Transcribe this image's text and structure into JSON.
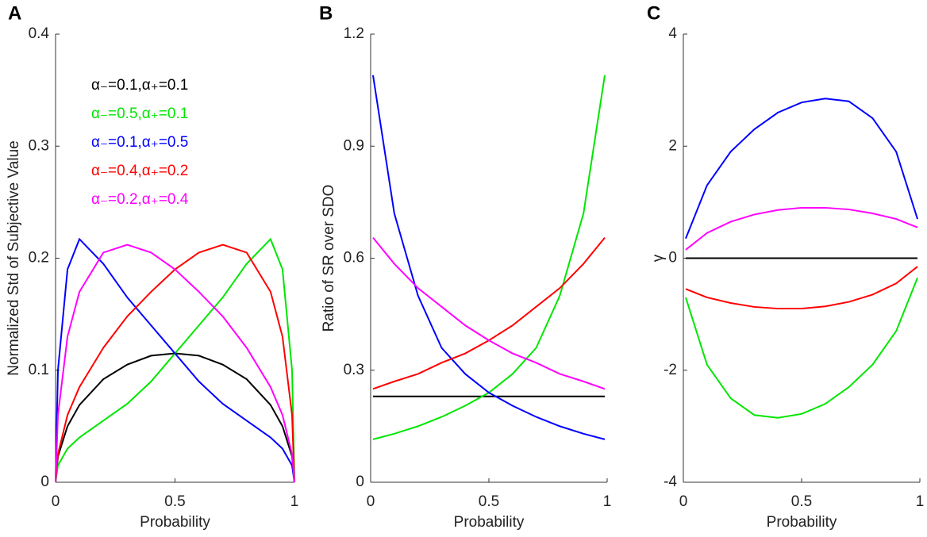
{
  "chart_data": [
    {
      "type": "line",
      "panel_label": "A",
      "xlabel": "Probability",
      "ylabel": "Normalized Std of Subjective Value",
      "x": [
        0,
        0.01,
        0.05,
        0.1,
        0.2,
        0.3,
        0.4,
        0.5,
        0.6,
        0.7,
        0.8,
        0.9,
        0.95,
        0.99,
        1
      ],
      "xlim": [
        0,
        1
      ],
      "xticks": [
        0,
        0.5,
        1
      ],
      "ylim": [
        0,
        0.4
      ],
      "yticks": [
        0,
        0.1,
        0.2,
        0.3,
        0.4
      ],
      "series": [
        {
          "name": "α₋=0.1,α₊=0.1",
          "color": "#000000",
          "values": [
            0,
            0.023,
            0.05,
            0.069,
            0.092,
            0.105,
            0.113,
            0.115,
            0.113,
            0.105,
            0.092,
            0.069,
            0.05,
            0.023,
            0
          ]
        },
        {
          "name": "α₋=0.5,α₊=0.1",
          "color": "#00e600",
          "values": [
            0,
            0.015,
            0.03,
            0.04,
            0.055,
            0.07,
            0.09,
            0.115,
            0.14,
            0.165,
            0.195,
            0.217,
            0.19,
            0.1,
            0
          ]
        },
        {
          "name": "α₋=0.1,α₊=0.5",
          "color": "#0000ff",
          "values": [
            0,
            0.1,
            0.19,
            0.217,
            0.195,
            0.165,
            0.14,
            0.115,
            0.09,
            0.07,
            0.055,
            0.04,
            0.03,
            0.015,
            0
          ]
        },
        {
          "name": "α₋=0.4,α₊=0.2",
          "color": "#ff0000",
          "values": [
            0,
            0.025,
            0.06,
            0.085,
            0.12,
            0.148,
            0.17,
            0.19,
            0.205,
            0.212,
            0.205,
            0.17,
            0.13,
            0.06,
            0
          ]
        },
        {
          "name": "α₋=0.2,α₊=0.4",
          "color": "#ff00ff",
          "values": [
            0,
            0.06,
            0.13,
            0.17,
            0.205,
            0.212,
            0.205,
            0.19,
            0.17,
            0.148,
            0.12,
            0.085,
            0.06,
            0.025,
            0
          ]
        }
      ]
    },
    {
      "type": "line",
      "panel_label": "B",
      "xlabel": "Probability",
      "ylabel": "Ratio of SR over SDO",
      "x": [
        0.01,
        0.1,
        0.2,
        0.3,
        0.4,
        0.5,
        0.6,
        0.7,
        0.8,
        0.9,
        0.99
      ],
      "xlim": [
        0,
        1
      ],
      "xticks": [
        0,
        0.5,
        1
      ],
      "ylim": [
        0,
        1.2
      ],
      "yticks": [
        0,
        0.3,
        0.6,
        0.9,
        1.2
      ],
      "series": [
        {
          "color": "#000000",
          "values": [
            0.23,
            0.23,
            0.23,
            0.23,
            0.23,
            0.23,
            0.23,
            0.23,
            0.23,
            0.23,
            0.23
          ]
        },
        {
          "color": "#00e600",
          "values": [
            0.115,
            0.13,
            0.15,
            0.175,
            0.205,
            0.24,
            0.29,
            0.36,
            0.5,
            0.72,
            1.09
          ]
        },
        {
          "color": "#0000ff",
          "values": [
            1.09,
            0.72,
            0.5,
            0.36,
            0.29,
            0.24,
            0.205,
            0.175,
            0.15,
            0.13,
            0.115
          ]
        },
        {
          "color": "#ff0000",
          "values": [
            0.25,
            0.27,
            0.29,
            0.32,
            0.345,
            0.38,
            0.42,
            0.47,
            0.52,
            0.585,
            0.655
          ]
        },
        {
          "color": "#ff00ff",
          "values": [
            0.655,
            0.585,
            0.52,
            0.47,
            0.42,
            0.38,
            0.345,
            0.32,
            0.29,
            0.27,
            0.25
          ]
        }
      ]
    },
    {
      "type": "line",
      "panel_label": "C",
      "xlabel": "Probability",
      "ylabel": "γ",
      "x": [
        0.01,
        0.1,
        0.2,
        0.3,
        0.4,
        0.5,
        0.6,
        0.7,
        0.8,
        0.9,
        0.99
      ],
      "xlim": [
        0,
        1
      ],
      "xticks": [
        0,
        0.5,
        1
      ],
      "ylim": [
        -4,
        4
      ],
      "yticks": [
        -4,
        -2,
        0,
        2,
        4
      ],
      "series": [
        {
          "color": "#000000",
          "values": [
            0,
            0,
            0,
            0,
            0,
            0,
            0,
            0,
            0,
            0,
            0
          ]
        },
        {
          "color": "#00e600",
          "values": [
            -0.7,
            -1.9,
            -2.5,
            -2.8,
            -2.85,
            -2.78,
            -2.6,
            -2.3,
            -1.9,
            -1.3,
            -0.35
          ]
        },
        {
          "color": "#0000ff",
          "values": [
            0.35,
            1.3,
            1.9,
            2.3,
            2.6,
            2.78,
            2.85,
            2.8,
            2.5,
            1.9,
            0.7
          ]
        },
        {
          "color": "#ff0000",
          "values": [
            -0.55,
            -0.7,
            -0.8,
            -0.87,
            -0.9,
            -0.9,
            -0.86,
            -0.78,
            -0.65,
            -0.45,
            -0.15
          ]
        },
        {
          "color": "#ff00ff",
          "values": [
            0.15,
            0.45,
            0.65,
            0.78,
            0.86,
            0.9,
            0.9,
            0.87,
            0.8,
            0.7,
            0.55
          ]
        }
      ]
    }
  ]
}
